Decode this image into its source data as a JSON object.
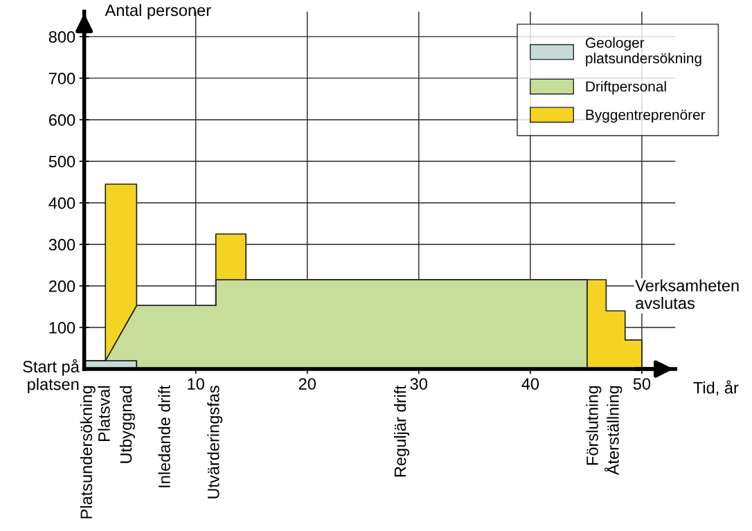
{
  "chart_data": {
    "type": "area",
    "stacked": true,
    "ylabel": "Antal personer",
    "xlabel": "Tid, år",
    "x": [
      0,
      1.9,
      1.9,
      4.7,
      4.7,
      11.8,
      11.8,
      14.5,
      14.5,
      45.1,
      45.1,
      46.8,
      46.8,
      48.5,
      48.5,
      50,
      50
    ],
    "series": [
      {
        "name": "Geologer\nplatsundersökning",
        "color": "#c7dcd9",
        "values": [
          20,
          20,
          20,
          20,
          0,
          0,
          0,
          0,
          0,
          0,
          0,
          0,
          0,
          0,
          0,
          0,
          0
        ]
      },
      {
        "name": "Driftpersonal",
        "color": "#c6de99",
        "values": [
          0,
          0,
          0,
          133,
          153,
          153,
          215,
          215,
          215,
          215,
          0,
          0,
          0,
          0,
          0,
          0,
          0
        ]
      },
      {
        "name": "Byggentreprenörer",
        "color": "#f5d322",
        "values": [
          0,
          0,
          425,
          292,
          0,
          0,
          110,
          110,
          0,
          0,
          215,
          215,
          140,
          140,
          70,
          70,
          0
        ]
      }
    ],
    "xlim": [
      0,
      53
    ],
    "ylim": [
      0,
      860
    ],
    "xticks": [
      10,
      20,
      30,
      40,
      50
    ],
    "yticks": [
      100,
      200,
      300,
      400,
      500,
      600,
      700,
      800
    ],
    "grid": true,
    "legend": "top right",
    "annotations": [
      "Start på\nplatsen",
      "Verksamheten\navslutas",
      "Platsundersökning",
      "Platsval",
      "Utbyggnad",
      "Inledande drift",
      "Utvärderingsfas",
      "Reguljär drift",
      "Förslutning",
      "Återställning"
    ]
  }
}
